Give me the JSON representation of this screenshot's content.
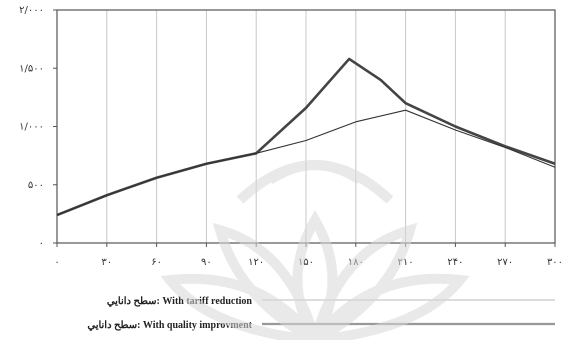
{
  "chart_data": {
    "type": "line",
    "title": "",
    "xlabel": "",
    "ylabel": "",
    "x": [
      0,
      30,
      60,
      90,
      120,
      150,
      180,
      210,
      240,
      270,
      300
    ],
    "xlim": [
      0,
      300
    ],
    "ylim": [
      0,
      2000
    ],
    "x_tick_labels": [
      "۰",
      "۳۰",
      "۶۰",
      "۹۰",
      "۱۲۰",
      "۱۵۰",
      "۱۸۰",
      "۲۱۰",
      "۲۴۰",
      "۲۷۰",
      "۳۰۰"
    ],
    "y_tick_labels": [
      "۲/۰۰۰",
      "۱/۵۰۰",
      "۱/۰۰۰",
      "۵۰۰",
      "۰"
    ],
    "y_ticks": [
      2000,
      1500,
      1000,
      500,
      0
    ],
    "grid": "vertical",
    "legend_position": "bottom-left",
    "series": [
      {
        "name": "سطح دانايي: With tariff reduction",
        "style": "solid-thick",
        "color": "#444444",
        "x": [
          0,
          30,
          60,
          90,
          120,
          150,
          176,
          195,
          210,
          240,
          270,
          300
        ],
        "values": [
          240,
          410,
          560,
          680,
          770,
          1160,
          1580,
          1400,
          1200,
          1000,
          830,
          680
        ]
      },
      {
        "name": "سطح دانايي: With quality improvment",
        "style": "thin",
        "color": "#333333",
        "x": [
          0,
          30,
          60,
          90,
          120,
          150,
          180,
          210,
          240,
          270,
          300
        ],
        "values": [
          240,
          410,
          560,
          680,
          770,
          880,
          1040,
          1140,
          970,
          820,
          650
        ]
      }
    ],
    "legend": [
      {
        "label": "سطح دانايي: With tariff reduction",
        "line": "thin-gray"
      },
      {
        "label": "سطح دانايي: With quality improvment",
        "line": "thick-gray"
      }
    ]
  }
}
